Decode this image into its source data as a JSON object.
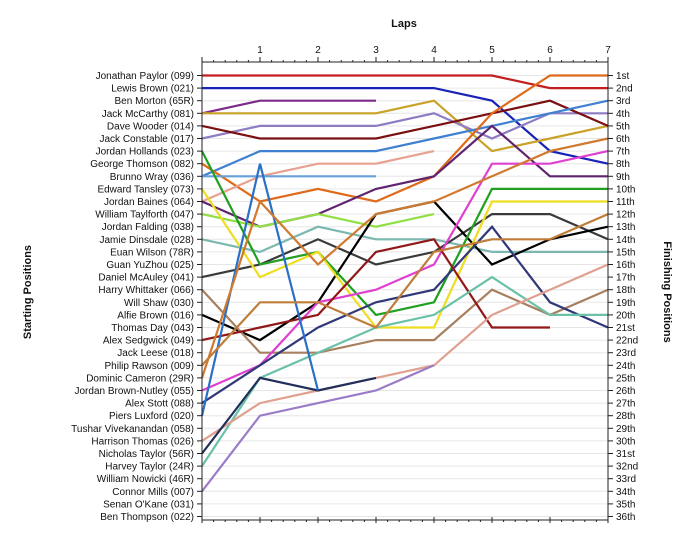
{
  "chart_data": {
    "type": "line",
    "xlabel": "Laps",
    "ylabel_left": "Starting Positions",
    "ylabel_right": "Finishing Positions",
    "x": [
      0,
      1,
      2,
      3,
      4,
      5,
      6,
      7
    ],
    "lap_ticks": [
      "1",
      "2",
      "3",
      "4",
      "5",
      "6",
      "7"
    ],
    "ylim": [
      1,
      36
    ],
    "grid": true,
    "starting_labels": [
      "Jonathan Paylor (099)",
      "Lewis Brown (021)",
      "Ben Morton (65R)",
      "Jack McCarthy (081)",
      "Dave Wooder (014)",
      "Jack Constable (017)",
      "Jordan Hollands (023)",
      "George Thomson (082)",
      "Brunno Wray (036)",
      "Edward Tansley (073)",
      "Jordan Baines (064)",
      "William Taylforth (047)",
      "Jordan Falding (038)",
      "Jamie Dinsdale (028)",
      "Euan Wilson (78R)",
      "Guan YuZhou (025)",
      "Daniel McAuley (041)",
      "Harry Whittaker (066)",
      "Will Shaw (030)",
      "Alfie Brown (016)",
      "Thomas Day (043)",
      "Alex Sedgwick (049)",
      "Jack Leese (018)",
      "Philip Rawson (009)",
      "Dominic Cameron (29R)",
      "Jordan Brown-Nutley (055)",
      "Alex Stott (088)",
      "Piers Luxford (020)",
      "Tushar Vivekanandan (058)",
      "Harrison Thomas (026)",
      "Nicholas Taylor (56R)",
      "Harvey Taylor (24R)",
      "William Nowicki (46R)",
      "Connor Mills (007)",
      "Senan O'Kane (031)",
      "Ben Thompson (022)"
    ],
    "finishing_labels": [
      "1st",
      "2nd",
      "3rd",
      "4th",
      "5th",
      "6th",
      "7th",
      "8th",
      "9th",
      "10th",
      "11th",
      "12th",
      "13th",
      "14th",
      "15th",
      "16th",
      "17th",
      "18th",
      "19th",
      "20th",
      "21st",
      "22nd",
      "23rd",
      "24th",
      "25th",
      "26th",
      "27th",
      "28th",
      "29th",
      "30th",
      "31st",
      "32nd",
      "33rd",
      "34th",
      "35th",
      "36th"
    ],
    "series": [
      {
        "color": "#c41e1e",
        "values": [
          1,
          1,
          1,
          1,
          1,
          1,
          2,
          2
        ]
      },
      {
        "color": "#1a23b8",
        "values": [
          2,
          2,
          2,
          2,
          2,
          3,
          7,
          8
        ]
      },
      {
        "color": "#7d2a8a",
        "values": [
          4,
          3,
          3,
          3,
          null,
          null,
          null,
          null
        ]
      },
      {
        "color": "#c9a227",
        "values": [
          4,
          4,
          4,
          4,
          3,
          7,
          6,
          5
        ]
      },
      {
        "color": "#8e7cc3",
        "values": [
          6,
          5,
          5,
          5,
          4,
          6,
          4,
          4
        ]
      },
      {
        "color": "#7a1010",
        "values": [
          5,
          6,
          6,
          6,
          5,
          4,
          3,
          5
        ]
      },
      {
        "color": "#4080d0",
        "values": [
          9,
          7,
          7,
          7,
          6,
          5,
          4,
          3
        ]
      },
      {
        "color": "#e06a1a",
        "values": [
          8,
          11,
          10,
          11,
          9,
          4,
          1,
          1
        ]
      },
      {
        "color": "#e8a090",
        "values": [
          11,
          9,
          8,
          8,
          7,
          null,
          null,
          null
        ]
      },
      {
        "color": "#66a0d8",
        "values": [
          9,
          9,
          9,
          9,
          null,
          null,
          null,
          null
        ]
      },
      {
        "color": "#5f2470",
        "values": [
          11,
          13,
          12,
          10,
          9,
          5,
          9,
          9
        ]
      },
      {
        "color": "#8fe040",
        "values": [
          12,
          13,
          12,
          13,
          12,
          null,
          null,
          null
        ]
      },
      {
        "color": "#7ab8b0",
        "values": [
          14,
          15,
          13,
          14,
          14,
          15,
          15,
          15
        ]
      },
      {
        "color": "#3a3a3a",
        "values": [
          17,
          16,
          14,
          16,
          15,
          12,
          12,
          14
        ]
      },
      {
        "color": "#000000",
        "values": [
          20,
          22,
          19,
          12,
          11,
          16,
          14,
          13
        ]
      },
      {
        "color": "#20a020",
        "values": [
          7,
          16,
          15,
          20,
          19,
          10,
          10,
          10
        ]
      },
      {
        "color": "#eedd20",
        "values": [
          10,
          17,
          15,
          21,
          21,
          11,
          11,
          11
        ]
      },
      {
        "color": "#a88060",
        "values": [
          18,
          23,
          23,
          22,
          22,
          18,
          20,
          18
        ]
      },
      {
        "color": "#e040d0",
        "values": [
          26,
          24,
          19,
          18,
          16,
          8,
          8,
          7
        ]
      },
      {
        "color": "#303878",
        "values": [
          27,
          24,
          21,
          19,
          18,
          13,
          19,
          21
        ]
      },
      {
        "color": "#901818",
        "values": [
          22,
          21,
          20,
          15,
          14,
          21,
          21,
          null
        ]
      },
      {
        "color": "#6ac0a8",
        "values": [
          32,
          25,
          23,
          21,
          20,
          17,
          20,
          20
        ]
      },
      {
        "color": "#e0a090",
        "values": [
          30,
          27,
          26,
          25,
          24,
          20,
          18,
          16
        ]
      },
      {
        "color": "#9a7cc8",
        "values": [
          34,
          28,
          27,
          26,
          24,
          null,
          null,
          null
        ]
      },
      {
        "color": "#20305a",
        "values": [
          31,
          25,
          26,
          25,
          null,
          null,
          null,
          null
        ]
      },
      {
        "color": "#2870c8",
        "values": [
          28,
          8,
          26,
          null,
          null,
          null,
          null,
          null
        ]
      },
      {
        "color": "#d07a30",
        "values": [
          25,
          11,
          16,
          12,
          11,
          9,
          7,
          6
        ]
      },
      {
        "color": "#c07d3a",
        "values": [
          24,
          19,
          19,
          21,
          15,
          14,
          14,
          12
        ]
      }
    ]
  }
}
